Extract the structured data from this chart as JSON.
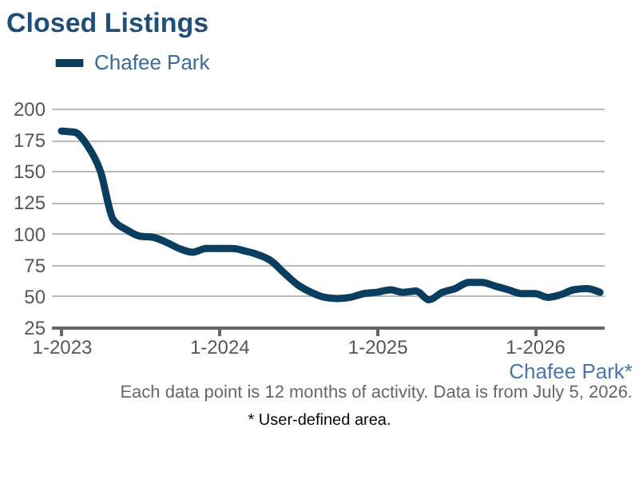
{
  "chart_data": {
    "type": "line",
    "title": "Closed Listings",
    "x": [
      "2023-01",
      "2023-02",
      "2023-03",
      "2023-04",
      "2023-05",
      "2023-06",
      "2023-07",
      "2023-08",
      "2023-09",
      "2023-10",
      "2023-11",
      "2023-12",
      "2024-01",
      "2024-02",
      "2024-03",
      "2024-04",
      "2024-05",
      "2024-06",
      "2024-07",
      "2024-08",
      "2024-09",
      "2024-10",
      "2024-11",
      "2024-12",
      "2025-01",
      "2025-02",
      "2025-03",
      "2025-04",
      "2025-05",
      "2025-06",
      "2025-07",
      "2025-08",
      "2025-09",
      "2025-10",
      "2025-11",
      "2025-12",
      "2026-01",
      "2026-02",
      "2026-03",
      "2026-04",
      "2026-05",
      "2026-06"
    ],
    "series": [
      {
        "name": "Chafee Park",
        "color": "#0b3d5e",
        "values": [
          182,
          181,
          171,
          150,
          111,
          103,
          98,
          97,
          93,
          88,
          85,
          88,
          88,
          88,
          86,
          83,
          78,
          68,
          59,
          53,
          49,
          48,
          49,
          52,
          53,
          55,
          53,
          54,
          47,
          53,
          56,
          61,
          61,
          58,
          55,
          52,
          52,
          49,
          51,
          55,
          56,
          53
        ]
      }
    ],
    "xlim": [
      "2022-12-08",
      "2026-06-10"
    ],
    "xticks": [
      {
        "value": "2023-01",
        "label": "1-2023"
      },
      {
        "value": "2024-01",
        "label": "1-2024"
      },
      {
        "value": "2025-01",
        "label": "1-2025"
      },
      {
        "value": "2026-01",
        "label": "1-2026"
      }
    ],
    "ylim": [
      25,
      200
    ],
    "yticks": [
      25,
      50,
      75,
      100,
      125,
      150,
      175,
      200
    ],
    "grid": "y",
    "legend": "top",
    "marker": "none",
    "line_style": "solid",
    "annotations": [
      "Chafee Park*",
      "Each data point is 12 months of activity. Data is from July 5, 2026.",
      "* User-defined area."
    ]
  }
}
